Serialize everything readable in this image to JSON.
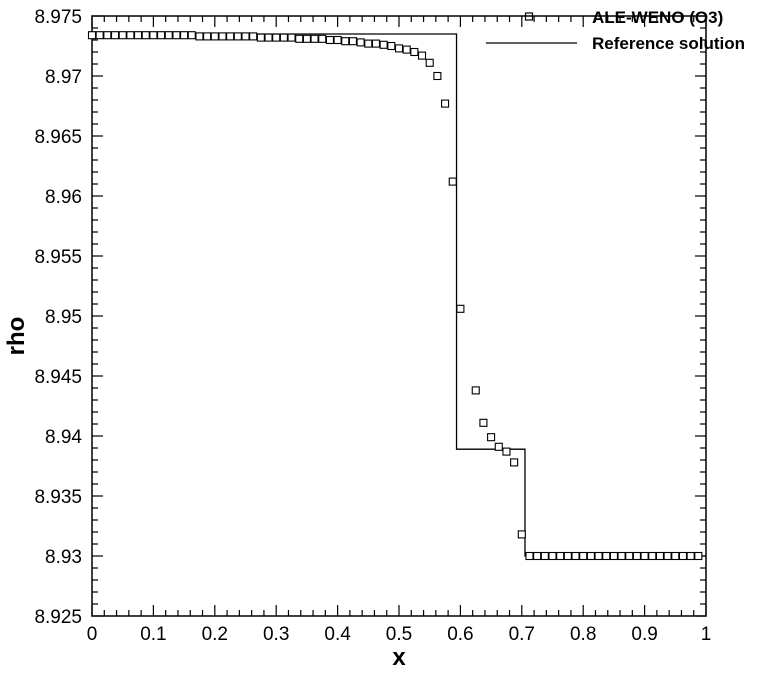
{
  "chart_data": {
    "type": "line",
    "xlabel": "x",
    "ylabel": "rho",
    "xlim": [
      0,
      1
    ],
    "ylim": [
      8.925,
      8.975
    ],
    "x_ticks": [
      "0",
      "0.1",
      "0.2",
      "0.3",
      "0.4",
      "0.5",
      "0.6",
      "0.7",
      "0.8",
      "0.9",
      "1"
    ],
    "y_ticks": [
      "8.925",
      "8.93",
      "8.935",
      "8.94",
      "8.945",
      "8.95",
      "8.955",
      "8.96",
      "8.965",
      "8.97",
      "8.975"
    ],
    "legend_position": "top-right",
    "series": [
      {
        "name": "ALE-WENO (O3)",
        "style": "square-markers",
        "color": "#000000",
        "points": [
          [
            0.0,
            8.9734
          ],
          [
            0.0125,
            8.9734
          ],
          [
            0.025,
            8.9734
          ],
          [
            0.0375,
            8.9734
          ],
          [
            0.05,
            8.9734
          ],
          [
            0.0625,
            8.9734
          ],
          [
            0.075,
            8.9734
          ],
          [
            0.0875,
            8.9734
          ],
          [
            0.1,
            8.9734
          ],
          [
            0.1125,
            8.9734
          ],
          [
            0.125,
            8.9734
          ],
          [
            0.1375,
            8.9734
          ],
          [
            0.15,
            8.9734
          ],
          [
            0.1625,
            8.9734
          ],
          [
            0.175,
            8.9733
          ],
          [
            0.1875,
            8.9733
          ],
          [
            0.2,
            8.9733
          ],
          [
            0.2125,
            8.9733
          ],
          [
            0.225,
            8.9733
          ],
          [
            0.2375,
            8.9733
          ],
          [
            0.25,
            8.9733
          ],
          [
            0.2625,
            8.9733
          ],
          [
            0.275,
            8.9732
          ],
          [
            0.2875,
            8.9732
          ],
          [
            0.3,
            8.9732
          ],
          [
            0.3125,
            8.9732
          ],
          [
            0.325,
            8.9732
          ],
          [
            0.3375,
            8.9731
          ],
          [
            0.35,
            8.9731
          ],
          [
            0.3625,
            8.9731
          ],
          [
            0.375,
            8.9731
          ],
          [
            0.3875,
            8.973
          ],
          [
            0.4,
            8.973
          ],
          [
            0.4125,
            8.9729
          ],
          [
            0.425,
            8.9729
          ],
          [
            0.4375,
            8.9728
          ],
          [
            0.45,
            8.9727
          ],
          [
            0.4625,
            8.9727
          ],
          [
            0.475,
            8.9726
          ],
          [
            0.4875,
            8.9725
          ],
          [
            0.5,
            8.9723
          ],
          [
            0.5125,
            8.9722
          ],
          [
            0.525,
            8.972
          ],
          [
            0.5375,
            8.9717
          ],
          [
            0.55,
            8.9711
          ],
          [
            0.5625,
            8.97
          ],
          [
            0.575,
            8.9677
          ],
          [
            0.5875,
            8.9612
          ],
          [
            0.6,
            8.9506
          ],
          [
            0.625,
            8.9438
          ],
          [
            0.6375,
            8.9411
          ],
          [
            0.65,
            8.9399
          ],
          [
            0.6625,
            8.9391
          ],
          [
            0.675,
            8.9387
          ],
          [
            0.6875,
            8.9378
          ],
          [
            0.7,
            8.9318
          ],
          [
            0.7125,
            8.93
          ],
          [
            0.725,
            8.93
          ],
          [
            0.7375,
            8.93
          ],
          [
            0.75,
            8.93
          ],
          [
            0.7625,
            8.93
          ],
          [
            0.775,
            8.93
          ],
          [
            0.7875,
            8.93
          ],
          [
            0.8,
            8.93
          ],
          [
            0.8125,
            8.93
          ],
          [
            0.825,
            8.93
          ],
          [
            0.8375,
            8.93
          ],
          [
            0.85,
            8.93
          ],
          [
            0.8625,
            8.93
          ],
          [
            0.875,
            8.93
          ],
          [
            0.8875,
            8.93
          ],
          [
            0.9,
            8.93
          ],
          [
            0.9125,
            8.93
          ],
          [
            0.925,
            8.93
          ],
          [
            0.9375,
            8.93
          ],
          [
            0.95,
            8.93
          ],
          [
            0.9625,
            8.93
          ],
          [
            0.975,
            8.93
          ],
          [
            0.9875,
            8.93
          ]
        ]
      },
      {
        "name": "Reference solution",
        "style": "solid-line",
        "color": "#000000",
        "points": [
          [
            0.0,
            8.9735
          ],
          [
            0.5937,
            8.9735
          ],
          [
            0.5937,
            8.9389
          ],
          [
            0.7052,
            8.9389
          ],
          [
            0.7052,
            8.93
          ],
          [
            1.0,
            8.93
          ]
        ]
      }
    ]
  }
}
